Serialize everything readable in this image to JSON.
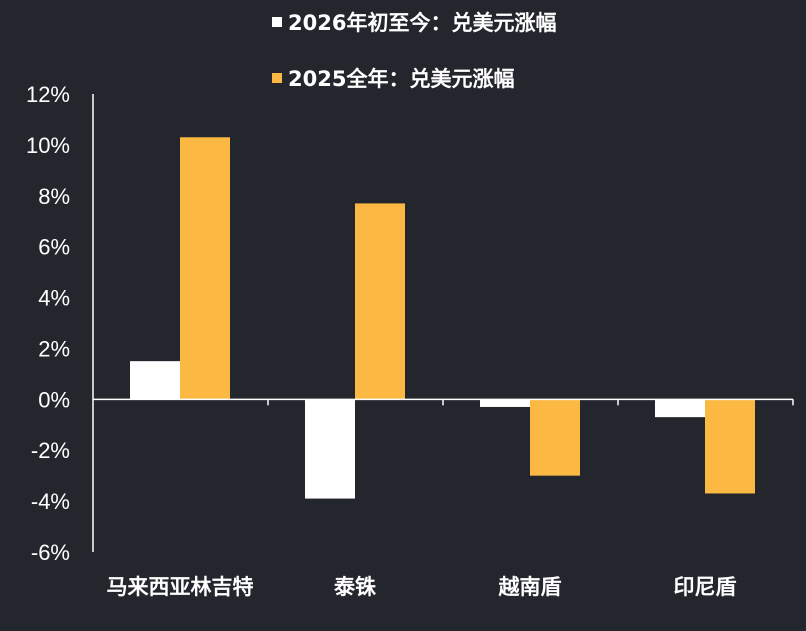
{
  "chart_data": {
    "type": "bar",
    "categories": [
      "马来西亚林吉特",
      "泰铢",
      "越南盾",
      "印尼盾"
    ],
    "series": [
      {
        "name": "2026年初至今：兑美元涨幅",
        "values": [
          1.5,
          -3.9,
          -0.3,
          -0.7
        ],
        "color": "#ffffff"
      },
      {
        "name": "2025全年：兑美元涨幅",
        "values": [
          10.3,
          7.7,
          -3.0,
          -3.7
        ],
        "color": "#fbb843"
      }
    ],
    "ylim": [
      -6,
      12
    ],
    "yticks": [
      12,
      10,
      8,
      6,
      4,
      2,
      0,
      -2,
      -4,
      -6
    ],
    "ytick_labels": [
      "12%",
      "10%",
      "8%",
      "6%",
      "4%",
      "2%",
      "0%",
      "-2%",
      "-4%",
      "-6%"
    ],
    "title": "",
    "xlabel": "",
    "ylabel": "",
    "legend_position": "top",
    "grid": false,
    "axis_color": "#ffffff",
    "background": "#24262e"
  }
}
